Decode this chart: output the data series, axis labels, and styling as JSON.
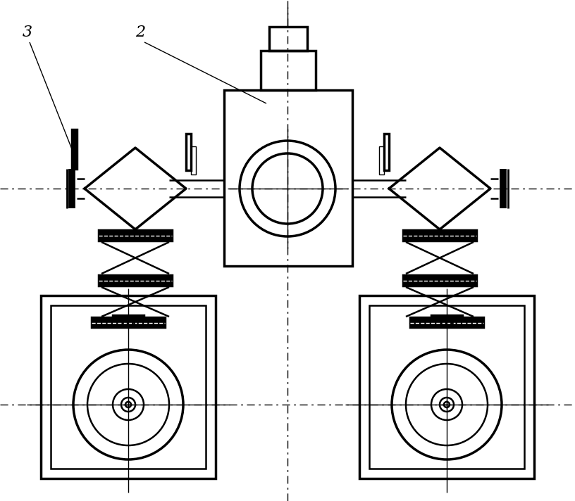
{
  "bg_color": "#ffffff",
  "line_color": "#000000",
  "fig_width": 8.16,
  "fig_height": 7.12,
  "dpi": 100,
  "label_3": "3",
  "label_2": "2"
}
